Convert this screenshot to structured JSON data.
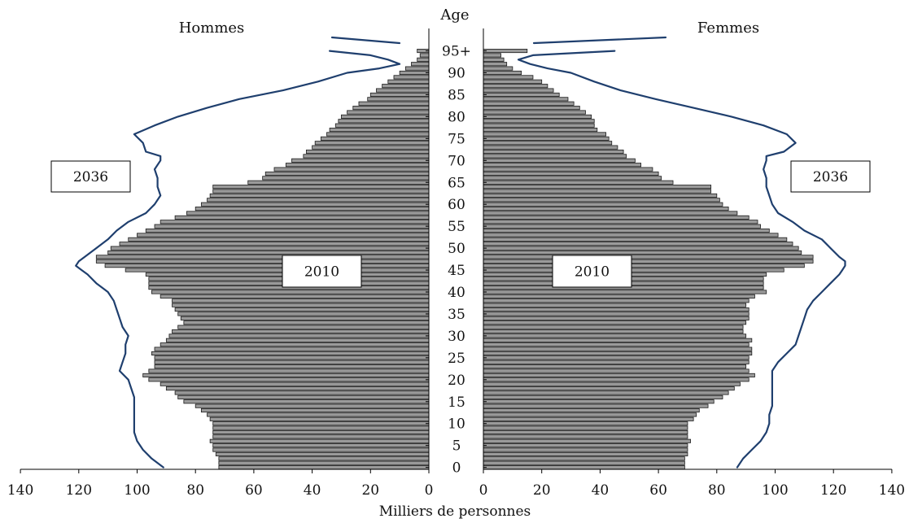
{
  "chart_data": {
    "type": "bar",
    "orientation": "horizontal",
    "layout": "population-pyramid",
    "title_left": "Hommes",
    "title_right": "Femmes",
    "center_axis_label": "Age",
    "xlabel": "Milliers de personnes",
    "xlim": [
      0,
      140
    ],
    "x_ticks": [
      0,
      20,
      40,
      60,
      80,
      100,
      120,
      140
    ],
    "age_ticks": [
      "0",
      "5",
      "10",
      "15",
      "20",
      "25",
      "30",
      "35",
      "40",
      "45",
      "50",
      "55",
      "60",
      "65",
      "70",
      "75",
      "80",
      "85",
      "90",
      "95+"
    ],
    "label_2010": "2010",
    "label_2036": "2036",
    "series": [
      {
        "name": "2010",
        "side": "Hommes",
        "ages": [
          0,
          1,
          2,
          3,
          4,
          5,
          6,
          7,
          8,
          9,
          10,
          11,
          12,
          13,
          14,
          15,
          16,
          17,
          18,
          19,
          20,
          21,
          22,
          23,
          24,
          25,
          26,
          27,
          28,
          29,
          30,
          31,
          32,
          33,
          34,
          35,
          36,
          37,
          38,
          39,
          40,
          41,
          42,
          43,
          44,
          45,
          46,
          47,
          48,
          49,
          50,
          51,
          52,
          53,
          54,
          55,
          56,
          57,
          58,
          59,
          60,
          61,
          62,
          63,
          64,
          65,
          66,
          67,
          68,
          69,
          70,
          71,
          72,
          73,
          74,
          75,
          76,
          77,
          78,
          79,
          80,
          81,
          82,
          83,
          84,
          85,
          86,
          87,
          88,
          89,
          90,
          91,
          92,
          93,
          94,
          "95+"
        ],
        "values": [
          72,
          72,
          72,
          73,
          74,
          74,
          75,
          74,
          74,
          74,
          74,
          75,
          76,
          78,
          80,
          84,
          86,
          87,
          90,
          92,
          96,
          98,
          96,
          94,
          94,
          94,
          95,
          94,
          92,
          90,
          89,
          88,
          86,
          84,
          85,
          86,
          87,
          88,
          88,
          92,
          95,
          96,
          96,
          96,
          97,
          104,
          111,
          114,
          114,
          110,
          109,
          106,
          103,
          100,
          97,
          94,
          92,
          87,
          83,
          80,
          78,
          76,
          75,
          74,
          74,
          62,
          57,
          56,
          53,
          49,
          47,
          43,
          42,
          40,
          39,
          37,
          35,
          34,
          32,
          31,
          30,
          28,
          26,
          24,
          21,
          20,
          18,
          16,
          14,
          12,
          10,
          8,
          6,
          4,
          3,
          4
        ]
      },
      {
        "name": "2010",
        "side": "Femmes",
        "ages": [
          0,
          1,
          2,
          3,
          4,
          5,
          6,
          7,
          8,
          9,
          10,
          11,
          12,
          13,
          14,
          15,
          16,
          17,
          18,
          19,
          20,
          21,
          22,
          23,
          24,
          25,
          26,
          27,
          28,
          29,
          30,
          31,
          32,
          33,
          34,
          35,
          36,
          37,
          38,
          39,
          40,
          41,
          42,
          43,
          44,
          45,
          46,
          47,
          48,
          49,
          50,
          51,
          52,
          53,
          54,
          55,
          56,
          57,
          58,
          59,
          60,
          61,
          62,
          63,
          64,
          65,
          66,
          67,
          68,
          69,
          70,
          71,
          72,
          73,
          74,
          75,
          76,
          77,
          78,
          79,
          80,
          81,
          82,
          83,
          84,
          85,
          86,
          87,
          88,
          89,
          90,
          91,
          92,
          93,
          94,
          "95+"
        ],
        "values": [
          69,
          69,
          69,
          70,
          70,
          70,
          71,
          70,
          70,
          70,
          70,
          72,
          73,
          74,
          77,
          79,
          82,
          84,
          86,
          88,
          91,
          93,
          91,
          90,
          91,
          91,
          92,
          92,
          91,
          92,
          90,
          89,
          89,
          90,
          91,
          91,
          91,
          90,
          91,
          93,
          97,
          96,
          96,
          96,
          97,
          103,
          110,
          113,
          113,
          109,
          108,
          106,
          104,
          101,
          98,
          95,
          94,
          91,
          87,
          84,
          82,
          81,
          80,
          78,
          78,
          65,
          61,
          60,
          58,
          54,
          52,
          49,
          48,
          46,
          44,
          43,
          42,
          39,
          38,
          38,
          37,
          35,
          33,
          31,
          29,
          26,
          24,
          22,
          20,
          17,
          13,
          10,
          8,
          7,
          6,
          15
        ]
      },
      {
        "name": "2036",
        "side": "Hommes",
        "ages": [
          0,
          2,
          4,
          6,
          8,
          10,
          12,
          14,
          16,
          18,
          20,
          22,
          24,
          26,
          28,
          30,
          32,
          34,
          36,
          38,
          40,
          42,
          44,
          45,
          46,
          47,
          48,
          50,
          52,
          54,
          56,
          58,
          60,
          62,
          64,
          66,
          68,
          70,
          71,
          72,
          74,
          76,
          78,
          80,
          82,
          84,
          86,
          88,
          90,
          91,
          92,
          93,
          94,
          "95+"
        ],
        "values": [
          91,
          95,
          98,
          100,
          101,
          101,
          101,
          101,
          101,
          102,
          103,
          106,
          105,
          104,
          104,
          103,
          105,
          106,
          107,
          108,
          110,
          114,
          117,
          119,
          121,
          120,
          118,
          114,
          110,
          107,
          103,
          97,
          94,
          92,
          93,
          93,
          94,
          92,
          92,
          97,
          98,
          101,
          94,
          86,
          76,
          65,
          50,
          38,
          28,
          17,
          10,
          14,
          20,
          34
        ]
      },
      {
        "name": "2036",
        "side": "Femmes",
        "ages": [
          0,
          2,
          4,
          6,
          8,
          10,
          12,
          14,
          16,
          18,
          20,
          22,
          24,
          26,
          28,
          30,
          32,
          34,
          36,
          38,
          40,
          42,
          44,
          45,
          46,
          47,
          48,
          50,
          52,
          54,
          56,
          58,
          60,
          62,
          64,
          66,
          68,
          70,
          71,
          72,
          74,
          76,
          78,
          80,
          82,
          84,
          86,
          88,
          90,
          91,
          92,
          93,
          94,
          "95+"
        ],
        "values": [
          87,
          89,
          92,
          95,
          97,
          98,
          98,
          99,
          99,
          99,
          99,
          99,
          101,
          104,
          107,
          108,
          109,
          110,
          111,
          113,
          116,
          119,
          122,
          123,
          124,
          124,
          122,
          119,
          116,
          110,
          106,
          101,
          99,
          98,
          97,
          97,
          96,
          97,
          97,
          103,
          107,
          104,
          96,
          85,
          72,
          59,
          47,
          38,
          30,
          22,
          16,
          12,
          17,
          45
        ]
      }
    ]
  }
}
